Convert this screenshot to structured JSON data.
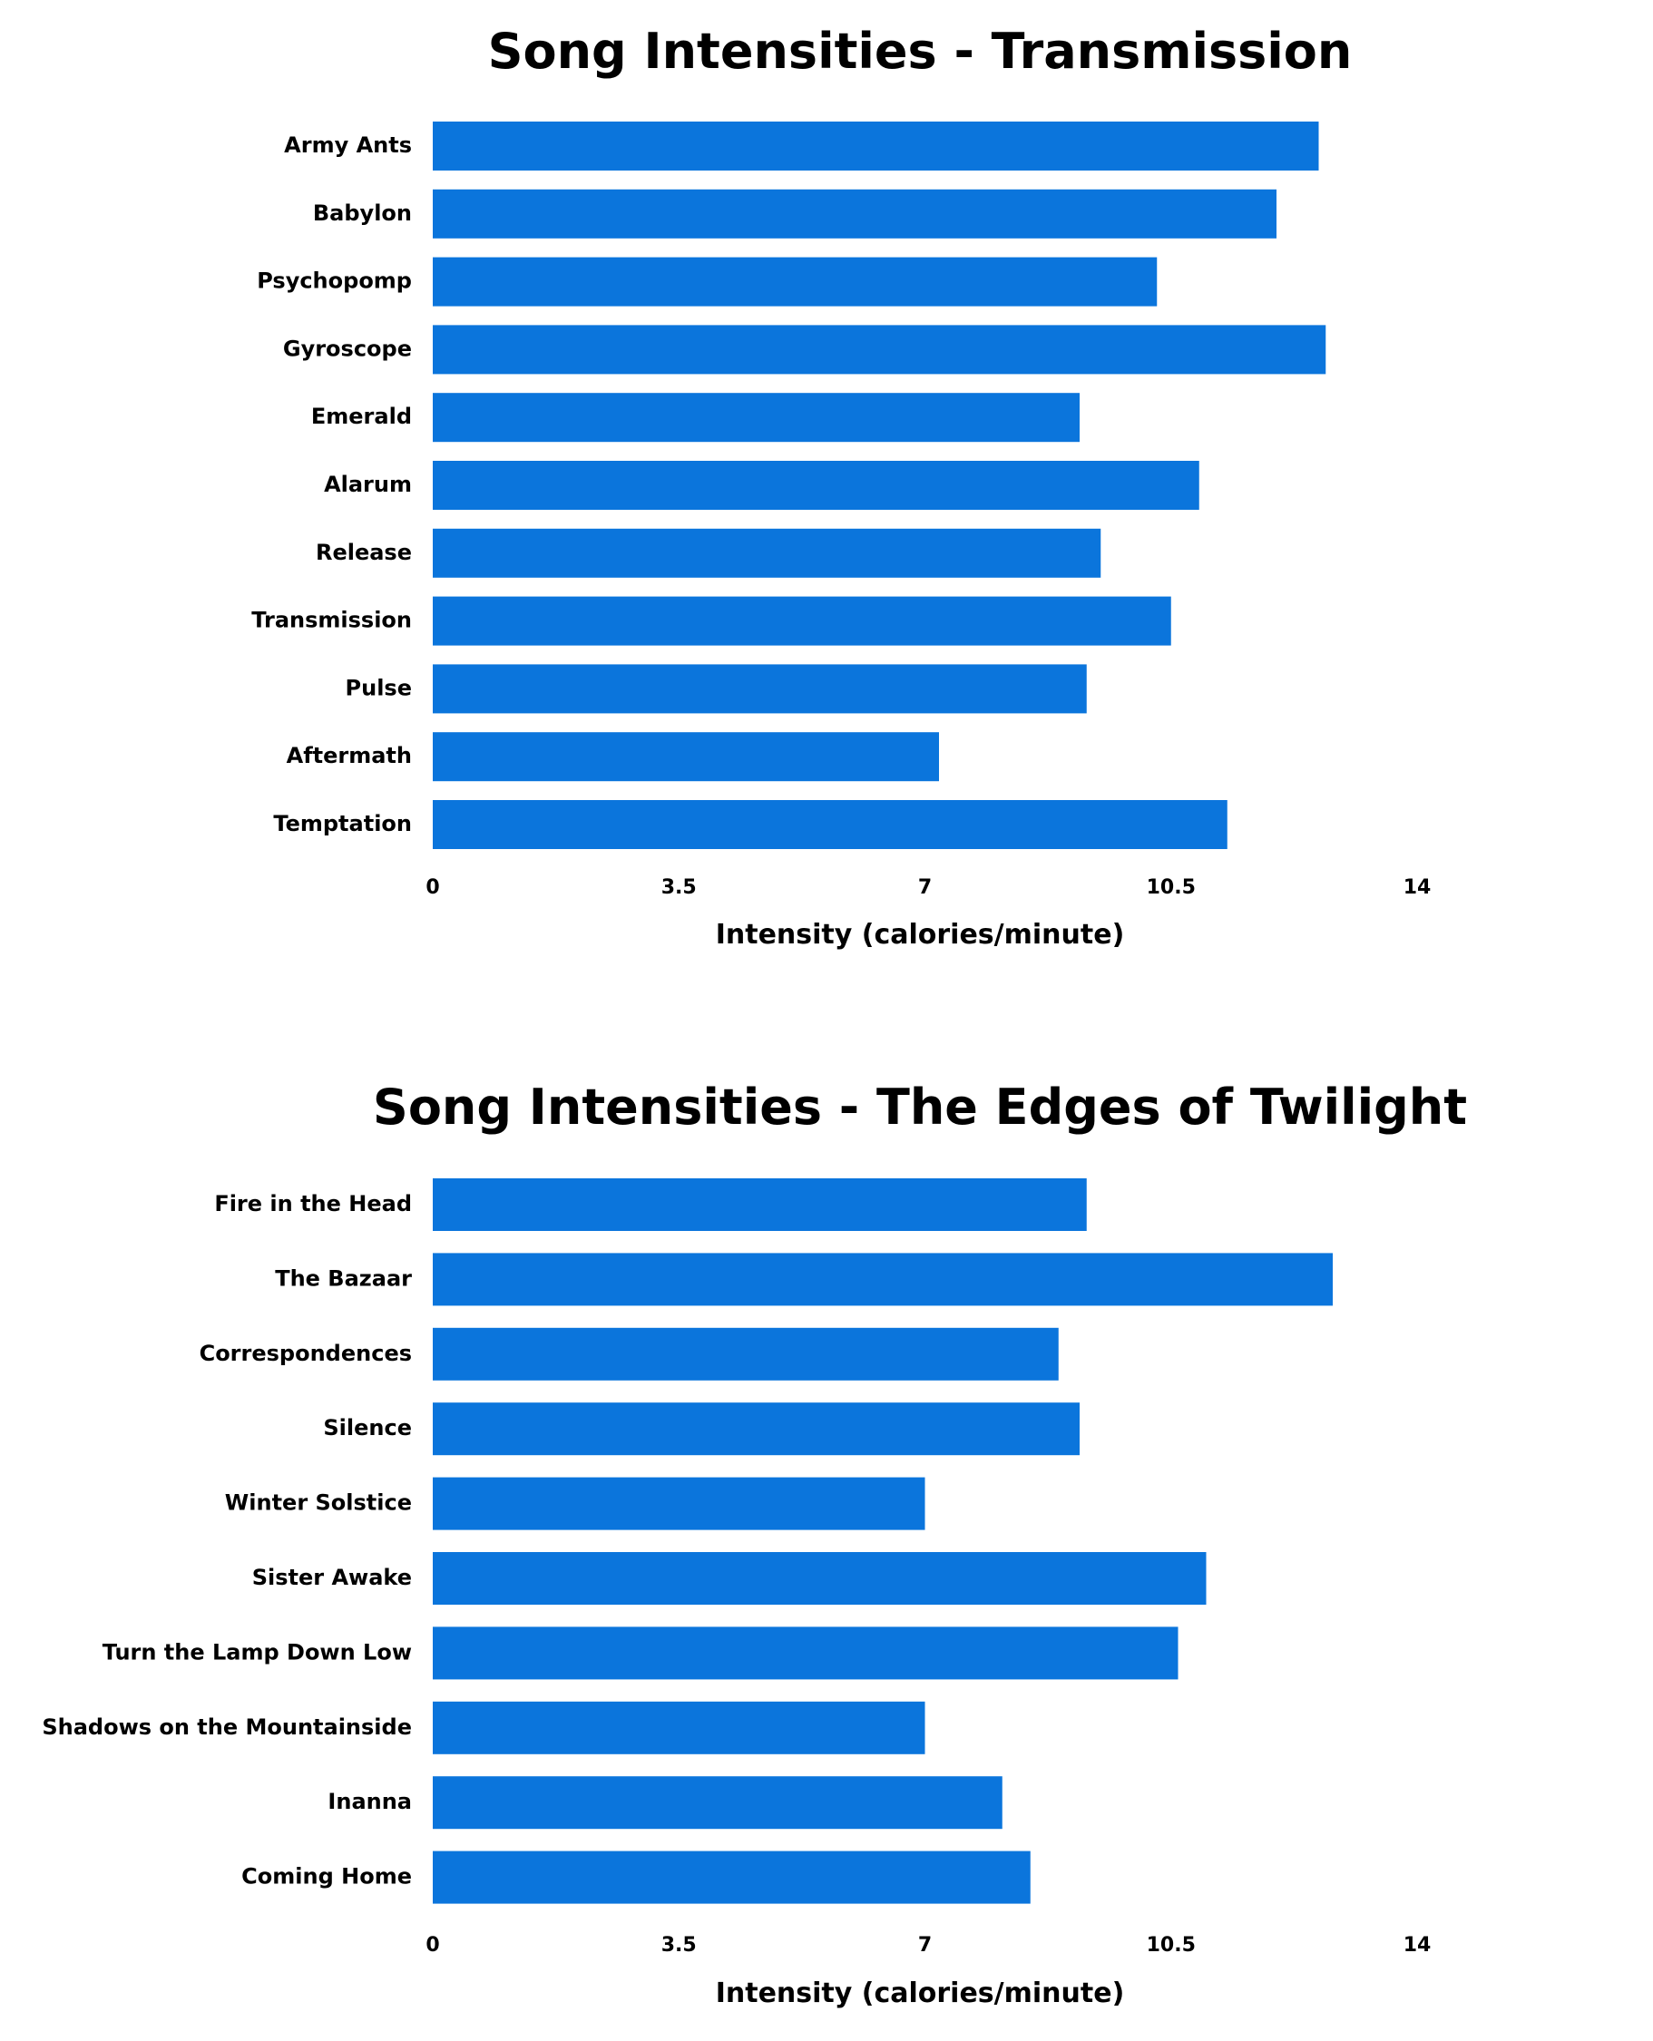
{
  "colors": {
    "bar": "#0b75dc",
    "text": "#000000",
    "background": "#ffffff"
  },
  "chart_data": [
    {
      "type": "bar",
      "orientation": "horizontal",
      "title": "Song Intensities - Transmission",
      "xlabel": "Intensity (calories/minute)",
      "ylabel": "",
      "xlim": [
        0,
        14
      ],
      "xticks": [
        "0",
        "3.5",
        "7",
        "10.5",
        "14"
      ],
      "grid": false,
      "legend": "none",
      "categories": [
        "Army Ants",
        "Babylon",
        "Psychopomp",
        "Gyroscope",
        "Emerald",
        "Alarum",
        "Release",
        "Transmission",
        "Pulse",
        "Aftermath",
        "Temptation"
      ],
      "values": [
        12.6,
        12.0,
        10.3,
        12.7,
        9.2,
        10.9,
        9.5,
        10.5,
        9.3,
        7.2,
        11.3
      ]
    },
    {
      "type": "bar",
      "orientation": "horizontal",
      "title": "Song Intensities - The Edges of Twilight",
      "xlabel": "Intensity (calories/minute)",
      "ylabel": "",
      "xlim": [
        0,
        14
      ],
      "xticks": [
        "0",
        "3.5",
        "7",
        "10.5",
        "14"
      ],
      "grid": false,
      "legend": "none",
      "categories": [
        "Fire in the Head",
        "The Bazaar",
        "Correspondences",
        "Silence",
        "Winter Solstice",
        "Sister Awake",
        "Turn the Lamp Down Low",
        "Shadows on the Mountainside",
        "Inanna",
        "Coming Home"
      ],
      "values": [
        9.3,
        12.8,
        8.9,
        9.2,
        7.0,
        11.0,
        10.6,
        7.0,
        8.1,
        8.5
      ]
    }
  ]
}
